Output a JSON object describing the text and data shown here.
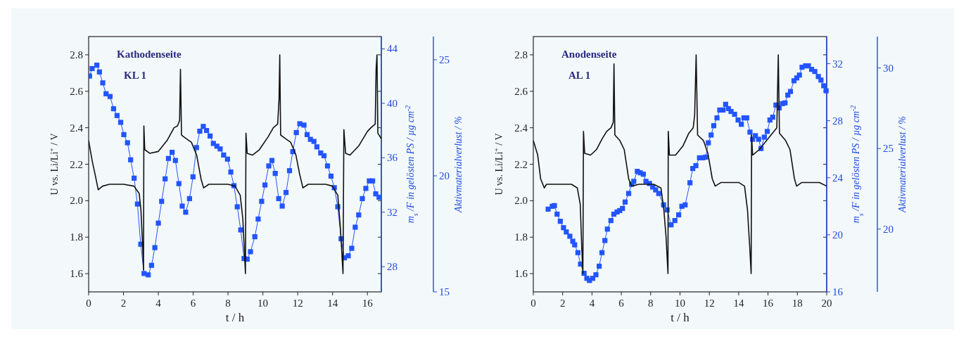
{
  "chart_data": [
    {
      "type": "line",
      "xlabel": "t / h",
      "ylabel": "U vs. Li/Li$^{+}$ / V",
      "y2label": "m$_{s}$ /F in gelösten PS / µg cm$^{-2}$",
      "y3label": "Aktivmaterialverlust / %",
      "annotations": [
        "Kathodenseite",
        "KL 1"
      ],
      "xlim": [
        0,
        16.8
      ],
      "xticks": [
        0,
        2,
        4,
        6,
        8,
        10,
        12,
        14,
        16
      ],
      "ylim": [
        1.5,
        2.9
      ],
      "yticks": [
        1.6,
        1.8,
        {
          "value": 2,
          "label": "2.0"
        },
        2.2,
        2.4,
        2.6,
        2.8
      ],
      "y2lim": [
        26.15,
        44.9
      ],
      "y2ticks": [
        28,
        32,
        36,
        40,
        44
      ],
      "y3lim": [
        15,
        26
      ],
      "y3ticks": [
        15,
        20,
        25
      ],
      "series": [
        {
          "color": "#111111",
          "marker": "none",
          "x": [
            0,
            0.2,
            0.4,
            0.55,
            0.8,
            1.2,
            2.0,
            2.6,
            2.9,
            3.0,
            3.1,
            3.15,
            3.17,
            3.22,
            3.5,
            4.0,
            4.5,
            4.9,
            5.1,
            5.22,
            5.27,
            5.33,
            5.6,
            5.9,
            6.2,
            6.45,
            6.6,
            6.9,
            8.0,
            8.4,
            8.7,
            8.85,
            9.0,
            9.03,
            9.1,
            9.4,
            9.8,
            10.3,
            10.6,
            10.85,
            10.93,
            10.97,
            11.02,
            11.3,
            11.6,
            11.9,
            12.1,
            12.3,
            12.6,
            13.6,
            14.0,
            14.3,
            14.45,
            14.6,
            14.65,
            14.75,
            15.0,
            15.5,
            16.0,
            16.2,
            16.45,
            16.5,
            16.55,
            16.6,
            16.8
          ],
          "values": [
            2.33,
            2.22,
            2.13,
            2.06,
            2.08,
            2.09,
            2.09,
            2.08,
            2.04,
            1.95,
            1.75,
            1.62,
            2.41,
            2.28,
            2.26,
            2.27,
            2.33,
            2.4,
            2.41,
            2.44,
            2.72,
            2.36,
            2.34,
            2.32,
            2.25,
            2.12,
            2.07,
            2.09,
            2.09,
            2.08,
            2.03,
            1.9,
            1.6,
            2.37,
            2.26,
            2.25,
            2.28,
            2.35,
            2.4,
            2.42,
            2.56,
            2.8,
            2.36,
            2.34,
            2.32,
            2.25,
            2.15,
            2.07,
            2.09,
            2.09,
            2.08,
            2.03,
            1.85,
            1.6,
            2.39,
            2.26,
            2.25,
            2.3,
            2.38,
            2.4,
            2.42,
            2.72,
            2.8,
            2.37,
            2.34
          ]
        },
        {
          "axis": "y2",
          "color": "#2255ff",
          "marker": "square",
          "x": [
            0.05,
            0.2,
            0.47,
            0.62,
            0.81,
            1.0,
            1.23,
            1.43,
            1.63,
            1.84,
            2.02,
            2.23,
            2.41,
            2.61,
            2.8,
            2.99,
            3.18,
            3.42,
            3.61,
            3.8,
            4.0,
            4.19,
            4.39,
            4.58,
            4.79,
            4.98,
            5.18,
            5.37,
            5.57,
            5.79,
            5.99,
            6.19,
            6.38,
            6.58,
            6.77,
            6.97,
            7.16,
            7.36,
            7.55,
            7.75,
            7.97,
            8.16,
            8.34,
            8.53,
            8.73,
            8.92,
            9.1,
            9.29,
            9.54,
            9.73,
            9.93,
            10.12,
            10.34,
            10.52,
            10.71,
            10.91,
            11.11,
            11.33,
            11.53,
            11.72,
            11.92,
            12.12,
            12.36,
            12.54,
            12.73,
            12.93,
            13.1,
            13.32,
            13.51,
            13.71,
            13.91,
            14.1,
            14.3,
            14.49,
            14.68,
            14.9,
            15.1,
            15.3,
            15.5,
            15.71,
            15.91,
            16.11,
            16.3,
            16.48,
            16.67
          ],
          "values": [
            42.0,
            42.55,
            42.8,
            42.3,
            41.5,
            40.7,
            40.5,
            39.6,
            39.1,
            38.6,
            37.7,
            37.1,
            35.85,
            34.5,
            32.6,
            29.65,
            27.5,
            27.4,
            28.1,
            29.4,
            31.2,
            32.8,
            34.45,
            35.95,
            36.4,
            35.8,
            34.1,
            32.45,
            32.0,
            33.0,
            34.6,
            36.75,
            37.95,
            38.3,
            38.0,
            37.6,
            37.05,
            36.85,
            36.65,
            36.2,
            35.9,
            34.95,
            33.95,
            32.4,
            30.7,
            28.6,
            28.55,
            29.1,
            30.2,
            31.5,
            32.8,
            34.0,
            35.4,
            35.8,
            34.85,
            33.0,
            32.45,
            33.45,
            35.05,
            36.45,
            37.85,
            38.5,
            38.4,
            37.7,
            37.35,
            37.2,
            36.8,
            36.35,
            36.15,
            35.4,
            34.65,
            33.8,
            32.4,
            30.05,
            28.65,
            28.8,
            29.35,
            30.9,
            31.8,
            33.0,
            33.75,
            34.3,
            34.3,
            33.35,
            33.1
          ]
        }
      ]
    },
    {
      "type": "line",
      "xlabel": "t / h",
      "ylabel": "U vs. Li/Li$^{+}$ / V",
      "y2label": "m$_{s}$ /F in gelösten PS / µg cm$^{-2}$",
      "y3label": "Aktivmaterialverlust / %",
      "annotations": [
        "Anodenseite",
        "AL 1"
      ],
      "xlim": [
        0,
        20
      ],
      "xticks": [
        0,
        2,
        4,
        6,
        8,
        10,
        12,
        14,
        16,
        18,
        20
      ],
      "ylim": [
        1.5,
        2.9
      ],
      "yticks": [
        1.6,
        1.8,
        {
          "value": 2,
          "label": "2.0"
        },
        2.2,
        2.4,
        2.6,
        2.8
      ],
      "y2lim": [
        16,
        33.9
      ],
      "y2ticks": [
        16,
        20,
        24,
        28,
        32
      ],
      "y3lim": [
        16.1,
        31.95
      ],
      "y3ticks": [
        20,
        25,
        30
      ],
      "series": [
        {
          "color": "#111111",
          "marker": "none",
          "x": [
            0,
            0.3,
            0.5,
            0.75,
            0.9,
            2.0,
            2.6,
            3.0,
            3.2,
            3.3,
            3.38,
            3.42,
            3.5,
            3.9,
            4.3,
            4.7,
            5.0,
            5.3,
            5.45,
            5.5,
            5.56,
            5.9,
            6.2,
            6.5,
            6.7,
            7.2,
            8.2,
            8.7,
            8.9,
            9.05,
            9.18,
            9.2,
            9.28,
            9.7,
            10.2,
            10.6,
            10.9,
            11.0,
            11.1,
            11.2,
            11.6,
            11.9,
            12.2,
            12.4,
            12.8,
            14.0,
            14.4,
            14.6,
            14.75,
            14.85,
            14.88,
            14.95,
            15.4,
            15.9,
            16.3,
            16.6,
            16.7,
            16.78,
            17.2,
            17.5,
            17.8,
            17.95,
            18.3,
            19.5,
            20
          ],
          "values": [
            2.33,
            2.25,
            2.12,
            2.07,
            2.09,
            2.09,
            2.09,
            2.07,
            1.98,
            1.75,
            1.6,
            2.38,
            2.26,
            2.25,
            2.28,
            2.34,
            2.38,
            2.4,
            2.43,
            2.75,
            2.36,
            2.33,
            2.28,
            2.12,
            2.08,
            2.09,
            2.09,
            2.07,
            1.95,
            1.8,
            1.6,
            2.38,
            2.25,
            2.25,
            2.3,
            2.37,
            2.4,
            2.47,
            2.8,
            2.36,
            2.33,
            2.26,
            2.12,
            2.08,
            2.1,
            2.1,
            2.08,
            1.95,
            1.75,
            1.6,
            2.36,
            2.25,
            2.28,
            2.33,
            2.37,
            2.4,
            2.8,
            2.37,
            2.33,
            2.28,
            2.12,
            2.08,
            2.1,
            2.1,
            2.08
          ]
        },
        {
          "axis": "y2",
          "color": "#2255ff",
          "marker": "square",
          "x": [
            1.01,
            1.29,
            1.44,
            1.62,
            1.84,
            2.06,
            2.25,
            2.49,
            2.69,
            2.82,
            3.04,
            3.22,
            3.46,
            3.65,
            3.83,
            4.05,
            4.27,
            4.49,
            4.68,
            4.88,
            5.05,
            5.29,
            5.49,
            5.71,
            5.89,
            6.08,
            6.26,
            6.5,
            6.7,
            6.85,
            7.09,
            7.29,
            7.5,
            7.68,
            7.92,
            8.14,
            8.34,
            8.55,
            8.88,
            9.12,
            9.39,
            9.65,
            9.91,
            10.13,
            10.35,
            10.68,
            10.87,
            11.08,
            11.33,
            11.56,
            11.75,
            11.93,
            12.12,
            12.3,
            12.52,
            12.71,
            12.93,
            13.11,
            13.3,
            13.48,
            13.72,
            13.96,
            14.18,
            14.36,
            14.55,
            14.77,
            14.95,
            15.14,
            15.36,
            15.52,
            15.75,
            15.95,
            16.13,
            16.32,
            16.54,
            16.76,
            16.98,
            17.16,
            17.35,
            17.53,
            17.77,
            17.96,
            18.14,
            18.32,
            18.56,
            18.75,
            18.97,
            19.19,
            19.43,
            19.61,
            19.8,
            19.96
          ],
          "values": [
            21.8,
            22.0,
            22.05,
            21.45,
            20.95,
            20.5,
            20.2,
            19.9,
            19.55,
            19.3,
            18.75,
            17.95,
            17.3,
            16.95,
            16.8,
            16.95,
            17.2,
            17.8,
            18.75,
            19.6,
            20.4,
            21.0,
            21.45,
            21.6,
            21.7,
            21.85,
            22.3,
            22.9,
            23.55,
            23.75,
            24.45,
            24.35,
            24.25,
            23.75,
            23.6,
            23.35,
            23.15,
            22.9,
            22.1,
            21.75,
            20.7,
            21.0,
            21.4,
            22.0,
            22.1,
            23.65,
            24.65,
            24.85,
            25.4,
            25.4,
            25.45,
            26.45,
            27.0,
            27.65,
            28.2,
            28.75,
            28.75,
            29.15,
            28.85,
            28.65,
            28.45,
            28.05,
            27.75,
            28.2,
            28.2,
            27.2,
            26.7,
            26.95,
            26.7,
            26.05,
            26.85,
            27.25,
            28.05,
            28.25,
            29.1,
            28.9,
            29.2,
            29.25,
            29.8,
            30.05,
            30.8,
            31.0,
            31.2,
            31.75,
            31.85,
            31.85,
            31.6,
            31.45,
            31.1,
            30.85,
            30.45,
            30.1
          ]
        }
      ]
    }
  ]
}
